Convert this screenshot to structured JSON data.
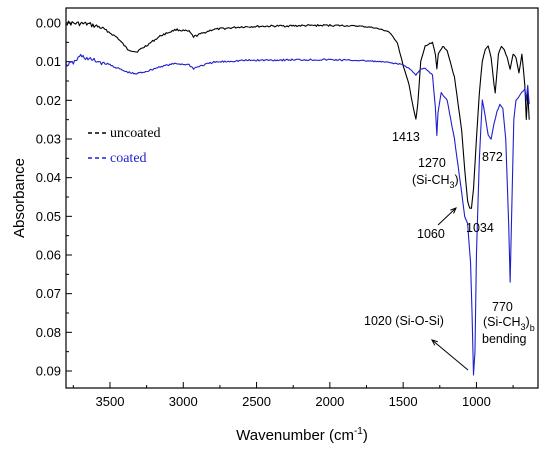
{
  "chart_data": {
    "type": "line",
    "xlabel": "Wavenumber (cm-1)",
    "xlabel_main": "Wavenumber (cm",
    "xlabel_sup": "-1",
    "xlabel_end": ")",
    "ylabel": "Absorbance",
    "xlim": [
      3800,
      580
    ],
    "x_reversed": true,
    "ylim": [
      0.0,
      0.093
    ],
    "y_inverted": true,
    "x_ticks": [
      {
        "v": 3500,
        "label": "3500"
      },
      {
        "v": 3000,
        "label": "3000"
      },
      {
        "v": 2500,
        "label": "2500"
      },
      {
        "v": 2000,
        "label": "2000"
      },
      {
        "v": 1500,
        "label": "1500"
      },
      {
        "v": 1000,
        "label": "1000"
      }
    ],
    "y_ticks": [
      {
        "v": 0.0,
        "label": "0.00"
      },
      {
        "v": 0.01,
        "label": "0.01"
      },
      {
        "v": 0.02,
        "label": "0.02"
      },
      {
        "v": 0.03,
        "label": "0.03"
      },
      {
        "v": 0.04,
        "label": "0.04"
      },
      {
        "v": 0.05,
        "label": "0.05"
      },
      {
        "v": 0.06,
        "label": "0.06"
      },
      {
        "v": 0.07,
        "label": "0.07"
      },
      {
        "v": 0.08,
        "label": "0.08"
      },
      {
        "v": 0.09,
        "label": "0.09"
      }
    ],
    "legend": [
      {
        "label": "uncoated",
        "color": "#000000",
        "style": "dashed"
      },
      {
        "label": "coated",
        "color": "#1f1fcc",
        "style": "dashed"
      }
    ],
    "legend_position": "upper-left",
    "series": [
      {
        "name": "uncoated",
        "color": "#000000",
        "points": [
          [
            3800,
            0.0
          ],
          [
            3650,
            0.0003
          ],
          [
            3550,
            0.0013
          ],
          [
            3450,
            0.0038
          ],
          [
            3380,
            0.0068
          ],
          [
            3320,
            0.0075
          ],
          [
            3250,
            0.0058
          ],
          [
            3150,
            0.0032
          ],
          [
            3050,
            0.0017
          ],
          [
            2960,
            0.0022
          ],
          [
            2930,
            0.0036
          ],
          [
            2900,
            0.0031
          ],
          [
            2800,
            0.0017
          ],
          [
            2600,
            0.001
          ],
          [
            2400,
            0.0008
          ],
          [
            2200,
            0.0007
          ],
          [
            2000,
            0.0006
          ],
          [
            1800,
            0.0008
          ],
          [
            1700,
            0.0012
          ],
          [
            1640,
            0.0018
          ],
          [
            1600,
            0.0022
          ],
          [
            1540,
            0.005
          ],
          [
            1500,
            0.011
          ],
          [
            1460,
            0.016
          ],
          [
            1430,
            0.022
          ],
          [
            1413,
            0.025
          ],
          [
            1400,
            0.021
          ],
          [
            1380,
            0.01
          ],
          [
            1350,
            0.006
          ],
          [
            1300,
            0.005
          ],
          [
            1280,
            0.008
          ],
          [
            1270,
            0.012
          ],
          [
            1260,
            0.008
          ],
          [
            1230,
            0.006
          ],
          [
            1200,
            0.007
          ],
          [
            1150,
            0.014
          ],
          [
            1100,
            0.028
          ],
          [
            1080,
            0.038
          ],
          [
            1060,
            0.046
          ],
          [
            1045,
            0.048
          ],
          [
            1034,
            0.048
          ],
          [
            1020,
            0.043
          ],
          [
            1000,
            0.03
          ],
          [
            980,
            0.018
          ],
          [
            960,
            0.01
          ],
          [
            940,
            0.007
          ],
          [
            920,
            0.006
          ],
          [
            900,
            0.009
          ],
          [
            880,
            0.016
          ],
          [
            872,
            0.018
          ],
          [
            865,
            0.015
          ],
          [
            850,
            0.008
          ],
          [
            830,
            0.006
          ],
          [
            810,
            0.007
          ],
          [
            790,
            0.009
          ],
          [
            770,
            0.012
          ],
          [
            750,
            0.008
          ],
          [
            730,
            0.009
          ],
          [
            710,
            0.013
          ],
          [
            690,
            0.008
          ],
          [
            670,
            0.016
          ],
          [
            660,
            0.025
          ],
          [
            650,
            0.018
          ],
          [
            640,
            0.025
          ]
        ]
      },
      {
        "name": "coated",
        "color": "#1f1fcc",
        "points": [
          [
            3800,
            0.0108
          ],
          [
            3750,
            0.0103
          ],
          [
            3700,
            0.0085
          ],
          [
            3650,
            0.0093
          ],
          [
            3600,
            0.0098
          ],
          [
            3500,
            0.0108
          ],
          [
            3400,
            0.0125
          ],
          [
            3330,
            0.0132
          ],
          [
            3250,
            0.0125
          ],
          [
            3150,
            0.0112
          ],
          [
            3050,
            0.0105
          ],
          [
            2960,
            0.0108
          ],
          [
            2930,
            0.0118
          ],
          [
            2900,
            0.0113
          ],
          [
            2800,
            0.0102
          ],
          [
            2600,
            0.0097
          ],
          [
            2400,
            0.0096
          ],
          [
            2200,
            0.0095
          ],
          [
            2000,
            0.0095
          ],
          [
            1800,
            0.0097
          ],
          [
            1700,
            0.0099
          ],
          [
            1600,
            0.0102
          ],
          [
            1500,
            0.0108
          ],
          [
            1450,
            0.012
          ],
          [
            1413,
            0.0135
          ],
          [
            1400,
            0.0128
          ],
          [
            1380,
            0.0118
          ],
          [
            1350,
            0.0118
          ],
          [
            1300,
            0.0135
          ],
          [
            1280,
            0.022
          ],
          [
            1270,
            0.029
          ],
          [
            1262,
            0.023
          ],
          [
            1240,
            0.018
          ],
          [
            1200,
            0.02
          ],
          [
            1150,
            0.03
          ],
          [
            1100,
            0.044
          ],
          [
            1080,
            0.05
          ],
          [
            1060,
            0.052
          ],
          [
            1040,
            0.062
          ],
          [
            1030,
            0.075
          ],
          [
            1020,
            0.091
          ],
          [
            1010,
            0.085
          ],
          [
            1000,
            0.06
          ],
          [
            980,
            0.035
          ],
          [
            960,
            0.02
          ],
          [
            940,
            0.024
          ],
          [
            920,
            0.029
          ],
          [
            900,
            0.03
          ],
          [
            880,
            0.026
          ],
          [
            860,
            0.023
          ],
          [
            840,
            0.021
          ],
          [
            820,
            0.022
          ],
          [
            800,
            0.03
          ],
          [
            780,
            0.052
          ],
          [
            770,
            0.067
          ],
          [
            760,
            0.05
          ],
          [
            745,
            0.025
          ],
          [
            730,
            0.02
          ],
          [
            710,
            0.019
          ],
          [
            690,
            0.018
          ],
          [
            670,
            0.017
          ],
          [
            660,
            0.02
          ],
          [
            650,
            0.016
          ],
          [
            640,
            0.021
          ]
        ]
      }
    ],
    "annotations": [
      {
        "lines": [
          "1413"
        ],
        "x": 1450,
        "y": 0.0307,
        "tx": 1450,
        "ty": 0.0307
      },
      {
        "lines": [
          "1270",
          "(Si-CH3)"
        ],
        "x": 1200,
        "y": 0.0383
      },
      {
        "lines": [
          "872"
        ],
        "x": 930,
        "y": 0.0383
      },
      {
        "lines": [
          "1060"
        ],
        "x": 1180,
        "y": 0.0556
      },
      {
        "lines": [
          "1034"
        ],
        "x": 1020,
        "y": 0.0536
      },
      {
        "lines": [
          "770",
          "(Si-CH3)b",
          "bending"
        ],
        "x": 790,
        "y": 0.0735
      },
      {
        "lines": [
          "1020 (Si-O-Si)"
        ],
        "x": 1330,
        "y": 0.0818
      }
    ],
    "ann_text": {
      "a1413": "1413",
      "a1270": "1270",
      "a1270b": "(Si-CH",
      "a1270c": "3",
      "a1270d": ")",
      "a872": "872",
      "a1060": "1060",
      "a1034": "1034",
      "a770": "770",
      "a770b": "(Si-CH",
      "a770c": "3",
      "a770d": ")",
      "a770e": "b",
      "a770f": "bending",
      "a1020": "1020 (Si-O-Si)"
    }
  }
}
